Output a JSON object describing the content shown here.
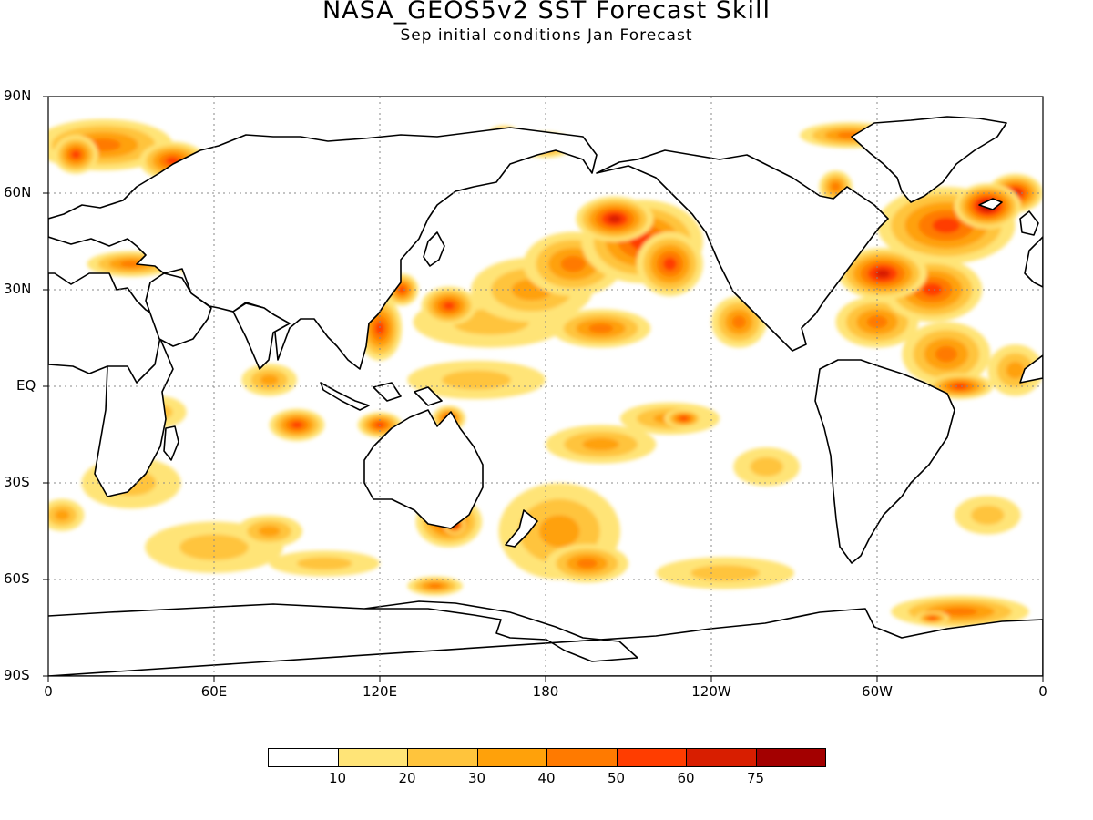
{
  "title": "NASA_GEOS5v2 SST Forecast Skill",
  "subtitle": "Sep initial conditions  Jan Forecast",
  "chart_data": {
    "type": "heatmap",
    "title": "NASA_GEOS5v2 SST Forecast Skill",
    "subtitle": "Sep initial conditions  Jan Forecast",
    "y_ticks": [
      "90N",
      "60N",
      "30N",
      "EQ",
      "30S",
      "60S",
      "90S"
    ],
    "x_ticks": [
      "0",
      "60E",
      "120E",
      "180",
      "120W",
      "60W",
      "0"
    ],
    "lon_range": [
      0,
      360
    ],
    "lat_range": [
      -90,
      90
    ],
    "grid": true,
    "colorbar": {
      "levels": [
        "10",
        "20",
        "30",
        "40",
        "50",
        "60",
        "75"
      ],
      "colors": [
        "#ffffff",
        "#ffe477",
        "#ffc43c",
        "#ffa10a",
        "#ff7a00",
        "#ff3d00",
        "#d81e00",
        "#a30000"
      ]
    },
    "skill_regions": [
      {
        "lon": 215,
        "lat": 45,
        "rx": 22,
        "ry": 13,
        "level": 5
      },
      {
        "lon": 205,
        "lat": 52,
        "rx": 14,
        "ry": 7,
        "level": 6
      },
      {
        "lon": 225,
        "lat": 38,
        "rx": 12,
        "ry": 10,
        "level": 5
      },
      {
        "lon": 190,
        "lat": 38,
        "rx": 18,
        "ry": 10,
        "level": 4
      },
      {
        "lon": 175,
        "lat": 30,
        "rx": 22,
        "ry": 10,
        "level": 3
      },
      {
        "lon": 160,
        "lat": 20,
        "rx": 28,
        "ry": 8,
        "level": 2
      },
      {
        "lon": 145,
        "lat": 25,
        "rx": 10,
        "ry": 6,
        "level": 5
      },
      {
        "lon": 200,
        "lat": 18,
        "rx": 18,
        "ry": 6,
        "level": 4
      },
      {
        "lon": 120,
        "lat": 18,
        "rx": 8,
        "ry": 10,
        "level": 5
      },
      {
        "lon": 128,
        "lat": 30,
        "rx": 6,
        "ry": 5,
        "level": 5
      },
      {
        "lon": 250,
        "lat": 20,
        "rx": 10,
        "ry": 8,
        "level": 4
      },
      {
        "lon": 325,
        "lat": 50,
        "rx": 25,
        "ry": 12,
        "level": 5
      },
      {
        "lon": 340,
        "lat": 56,
        "rx": 12,
        "ry": 7,
        "level": 7
      },
      {
        "lon": 302,
        "lat": 35,
        "rx": 16,
        "ry": 8,
        "level": 6
      },
      {
        "lon": 320,
        "lat": 30,
        "rx": 18,
        "ry": 10,
        "level": 5
      },
      {
        "lon": 300,
        "lat": 20,
        "rx": 15,
        "ry": 8,
        "level": 4
      },
      {
        "lon": 325,
        "lat": 10,
        "rx": 16,
        "ry": 10,
        "level": 4
      },
      {
        "lon": 330,
        "lat": 0,
        "rx": 12,
        "ry": 4,
        "level": 5
      },
      {
        "lon": 350,
        "lat": 60,
        "rx": 10,
        "ry": 6,
        "level": 6
      },
      {
        "lon": 20,
        "lat": 75,
        "rx": 25,
        "ry": 8,
        "level": 4
      },
      {
        "lon": 45,
        "lat": 70,
        "rx": 12,
        "ry": 6,
        "level": 5
      },
      {
        "lon": 10,
        "lat": 72,
        "rx": 8,
        "ry": 6,
        "level": 5
      },
      {
        "lon": 30,
        "lat": 38,
        "rx": 16,
        "ry": 4,
        "level": 4
      },
      {
        "lon": 50,
        "lat": 40,
        "rx": 4,
        "ry": 5,
        "level": 5
      },
      {
        "lon": 90,
        "lat": -12,
        "rx": 10,
        "ry": 5,
        "level": 5
      },
      {
        "lon": 120,
        "lat": -12,
        "rx": 8,
        "ry": 4,
        "level": 5
      },
      {
        "lon": 145,
        "lat": -10,
        "rx": 6,
        "ry": 4,
        "level": 5
      },
      {
        "lon": 155,
        "lat": 2,
        "rx": 25,
        "ry": 6,
        "level": 2
      },
      {
        "lon": 225,
        "lat": -10,
        "rx": 18,
        "ry": 5,
        "level": 3
      },
      {
        "lon": 230,
        "lat": -10,
        "rx": 7,
        "ry": 3,
        "level": 5
      },
      {
        "lon": 200,
        "lat": -18,
        "rx": 20,
        "ry": 6,
        "level": 3
      },
      {
        "lon": 145,
        "lat": -42,
        "rx": 12,
        "ry": 8,
        "level": 5
      },
      {
        "lon": 147,
        "lat": -43,
        "rx": 4,
        "ry": 3,
        "level": 7
      },
      {
        "lon": 185,
        "lat": -45,
        "rx": 22,
        "ry": 15,
        "level": 3
      },
      {
        "lon": 195,
        "lat": -55,
        "rx": 15,
        "ry": 6,
        "level": 4
      },
      {
        "lon": 60,
        "lat": -50,
        "rx": 25,
        "ry": 8,
        "level": 2
      },
      {
        "lon": 80,
        "lat": -45,
        "rx": 12,
        "ry": 5,
        "level": 3
      },
      {
        "lon": 30,
        "lat": -30,
        "rx": 18,
        "ry": 8,
        "level": 2
      },
      {
        "lon": 80,
        "lat": 2,
        "rx": 10,
        "ry": 5,
        "level": 3
      },
      {
        "lon": 330,
        "lat": -70,
        "rx": 25,
        "ry": 5,
        "level": 4
      },
      {
        "lon": 320,
        "lat": -72,
        "rx": 6,
        "ry": 2,
        "level": 5
      },
      {
        "lon": 245,
        "lat": -58,
        "rx": 25,
        "ry": 5,
        "level": 2
      },
      {
        "lon": 340,
        "lat": -40,
        "rx": 12,
        "ry": 6,
        "level": 2
      },
      {
        "lon": 260,
        "lat": -25,
        "rx": 12,
        "ry": 6,
        "level": 2
      },
      {
        "lon": 100,
        "lat": -55,
        "rx": 20,
        "ry": 4,
        "level": 2
      },
      {
        "lon": 140,
        "lat": -62,
        "rx": 10,
        "ry": 3,
        "level": 4
      },
      {
        "lon": 180,
        "lat": 75,
        "rx": 10,
        "ry": 4,
        "level": 4
      },
      {
        "lon": 165,
        "lat": 78,
        "rx": 6,
        "ry": 3,
        "level": 5
      },
      {
        "lon": 290,
        "lat": 78,
        "rx": 18,
        "ry": 4,
        "level": 4
      },
      {
        "lon": 285,
        "lat": 62,
        "rx": 6,
        "ry": 5,
        "level": 4
      },
      {
        "lon": 5,
        "lat": -40,
        "rx": 8,
        "ry": 5,
        "level": 3
      },
      {
        "lon": 40,
        "lat": -8,
        "rx": 10,
        "ry": 5,
        "level": 2
      },
      {
        "lon": 350,
        "lat": 5,
        "rx": 10,
        "ry": 8,
        "level": 3
      }
    ]
  }
}
